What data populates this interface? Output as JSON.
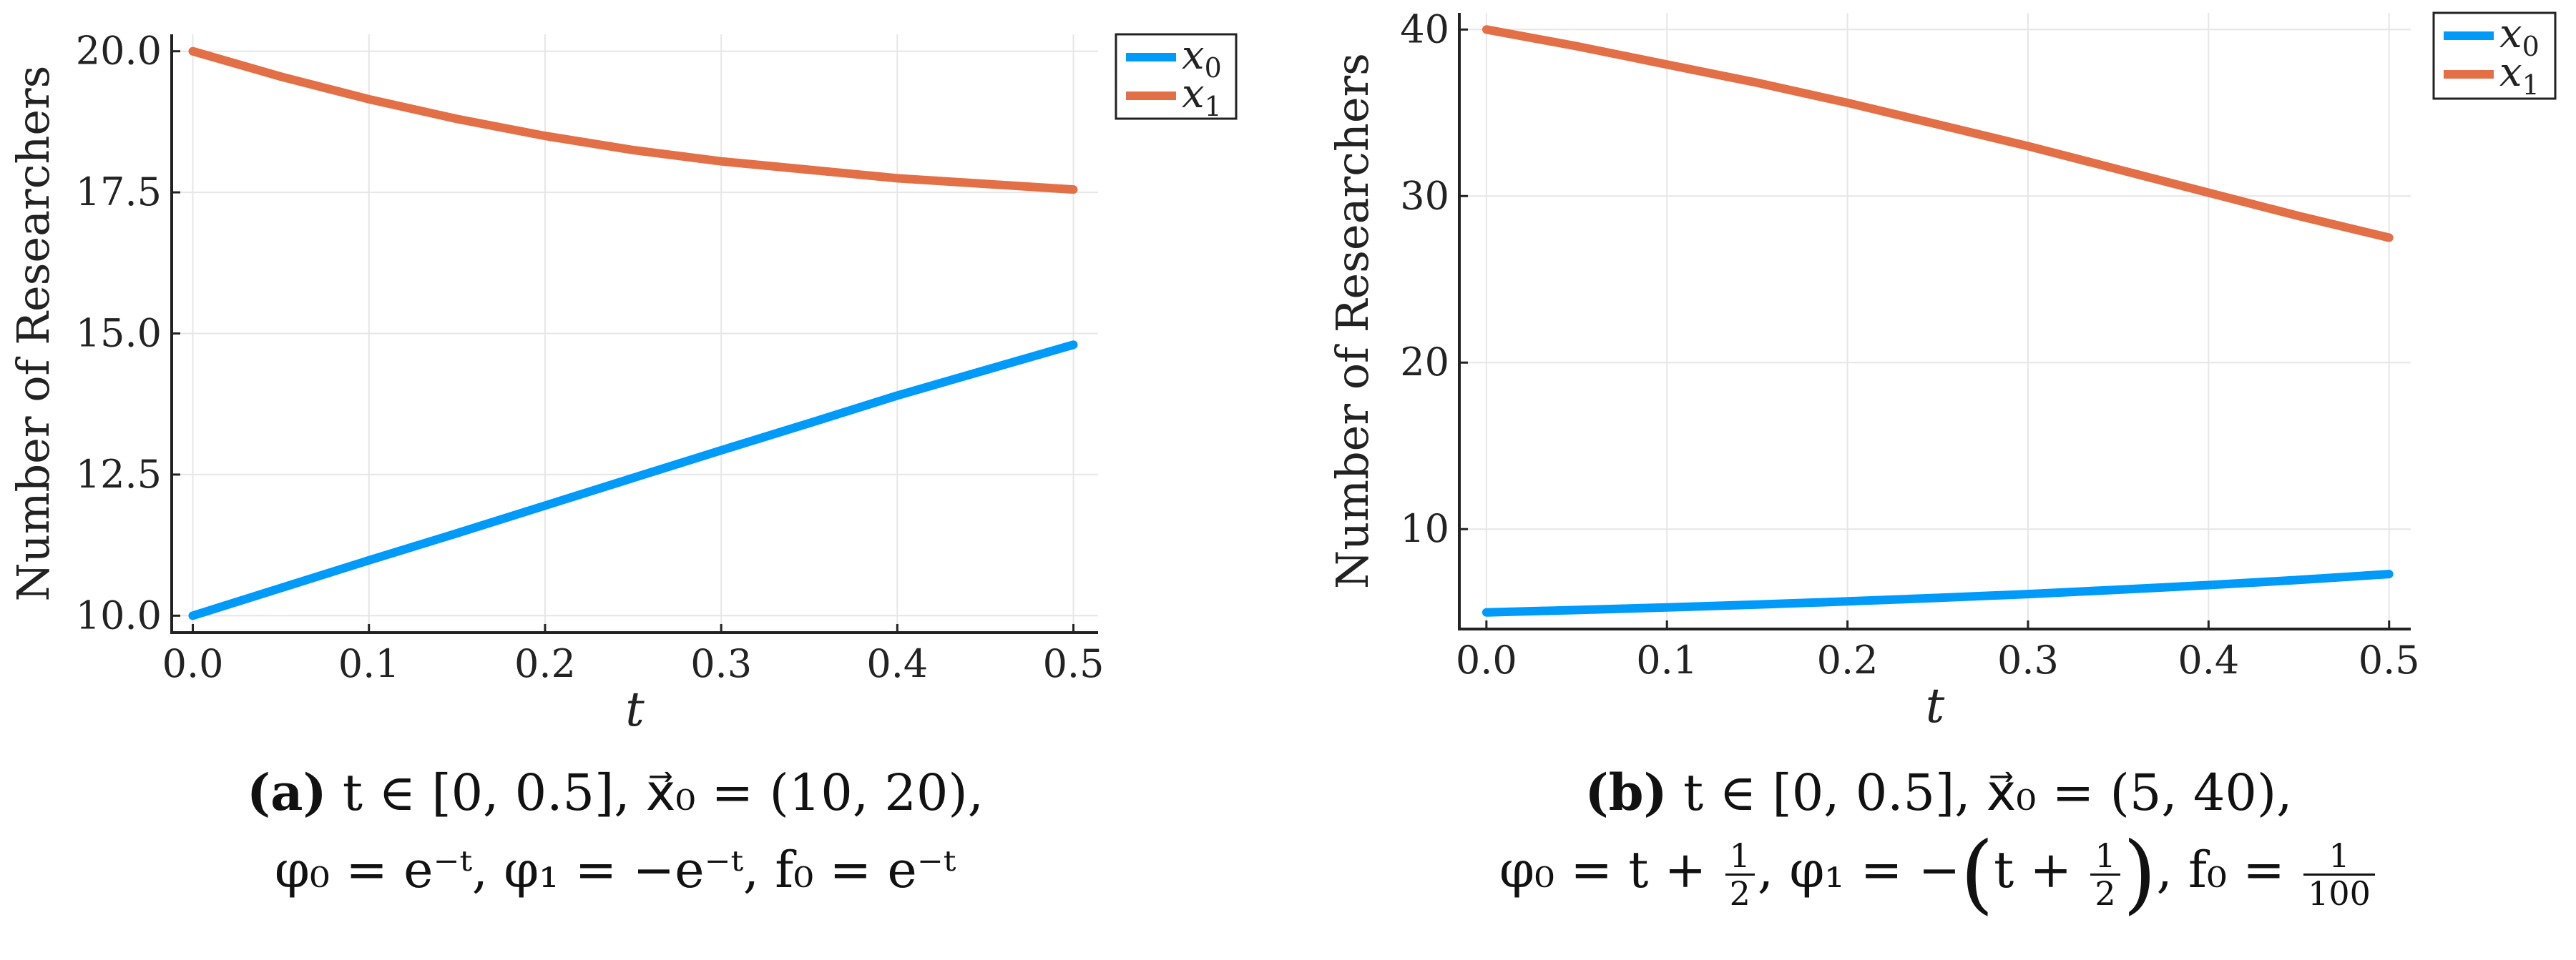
{
  "chart_data": [
    {
      "type": "line",
      "title": "",
      "xlabel": "t",
      "ylabel": "Number of Researchers",
      "xlim": [
        -0.012,
        0.514
      ],
      "ylim": [
        9.7,
        20.3
      ],
      "xticks": [
        0.0,
        0.1,
        0.2,
        0.3,
        0.4,
        0.5
      ],
      "xtick_labels": [
        "0.0",
        "0.1",
        "0.2",
        "0.3",
        "0.4",
        "0.5"
      ],
      "yticks": [
        10.0,
        12.5,
        15.0,
        17.5,
        20.0
      ],
      "ytick_labels": [
        "10.0",
        "12.5",
        "15.0",
        "17.5",
        "20.0"
      ],
      "grid": true,
      "legend": "top-right",
      "x": [
        0.0,
        0.05,
        0.1,
        0.15,
        0.2,
        0.25,
        0.3,
        0.35,
        0.4,
        0.45,
        0.5
      ],
      "series": [
        {
          "name": "x0",
          "label_base": "x",
          "label_sub": "0",
          "color": "#009af9",
          "values": [
            10.0,
            10.49,
            10.98,
            11.46,
            11.95,
            12.44,
            12.93,
            13.41,
            13.9,
            14.35,
            14.8
          ]
        },
        {
          "name": "x1",
          "label_base": "x",
          "label_sub": "1",
          "color": "#e26f46",
          "values": [
            20.0,
            19.55,
            19.15,
            18.8,
            18.5,
            18.25,
            18.05,
            17.9,
            17.75,
            17.65,
            17.55
          ]
        }
      ]
    },
    {
      "type": "line",
      "title": "",
      "xlabel": "t",
      "ylabel": "Number of Researchers",
      "xlim": [
        -0.015,
        0.512
      ],
      "ylim": [
        4.0,
        41.0
      ],
      "xticks": [
        0.0,
        0.1,
        0.2,
        0.3,
        0.4,
        0.5
      ],
      "xtick_labels": [
        "0.0",
        "0.1",
        "0.2",
        "0.3",
        "0.4",
        "0.5"
      ],
      "yticks": [
        10,
        20,
        30,
        40
      ],
      "ytick_labels": [
        "10",
        "20",
        "30",
        "40"
      ],
      "grid": true,
      "legend": "top-right",
      "x": [
        0.0,
        0.05,
        0.1,
        0.15,
        0.2,
        0.25,
        0.3,
        0.35,
        0.4,
        0.45,
        0.5
      ],
      "series": [
        {
          "name": "x0",
          "label_base": "x",
          "label_sub": "0",
          "color": "#009af9",
          "values": [
            5.0,
            5.14,
            5.3,
            5.47,
            5.66,
            5.87,
            6.1,
            6.36,
            6.64,
            6.95,
            7.3
          ]
        },
        {
          "name": "x1",
          "label_base": "x",
          "label_sub": "1",
          "color": "#e26f46",
          "values": [
            40.0,
            39.0,
            37.9,
            36.8,
            35.6,
            34.3,
            33.0,
            31.6,
            30.2,
            28.8,
            27.5
          ]
        }
      ]
    }
  ],
  "captions": [
    {
      "label": "(a)",
      "line1": "t ∈ [0, 0.5], x⃗₀ = (10, 20),",
      "line2": "φ₀ = e⁻ᵗ, φ₁ = −e⁻ᵗ, f₀ = e⁻ᵗ"
    },
    {
      "label": "(b)",
      "line1": "t ∈ [0, 0.5], x⃗₀ = (5, 40),",
      "line2_a": "φ₀ = t +",
      "line2_b": ", φ₁ = −",
      "line2_c": "t +",
      "line2_d": ", f₀ =",
      "half_num": "1",
      "half_den": "2",
      "f0_num": "1",
      "f0_den": "100"
    }
  ]
}
